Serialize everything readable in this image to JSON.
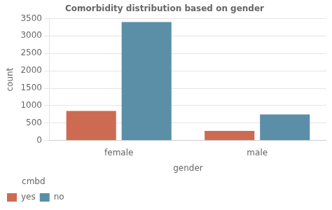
{
  "chart_data": {
    "type": "bar",
    "title": "Comorbidity distribution based on gender",
    "xlabel": "gender",
    "ylabel": "count",
    "categories": [
      "female",
      "male"
    ],
    "series": [
      {
        "name": "yes",
        "color": "#cc6a52",
        "values": [
          850,
          275
        ]
      },
      {
        "name": "no",
        "color": "#5b8fa8",
        "values": [
          3400,
          750
        ]
      }
    ],
    "ylim": [
      0,
      3500
    ],
    "yticks": [
      0,
      500,
      1000,
      1500,
      2000,
      2500,
      3000,
      3500
    ],
    "grid": true,
    "legend": "lower left",
    "legend_title": "cmbd"
  }
}
